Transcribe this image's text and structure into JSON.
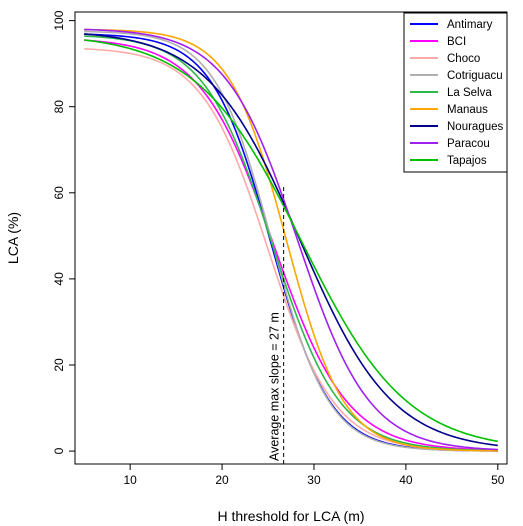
{
  "chart_data": {
    "type": "line",
    "title": "",
    "xlabel": "H threshold for LCA (m)",
    "ylabel": "LCA (%)",
    "xlim": [
      4,
      51
    ],
    "ylim": [
      -3,
      102
    ],
    "xticks": [
      10,
      20,
      30,
      40,
      50
    ],
    "yticks": [
      0,
      20,
      40,
      60,
      80,
      100
    ],
    "x_range": [
      5,
      50
    ],
    "grid": false,
    "legend_position": "top-right",
    "annotation": {
      "text": "Average max slope = 27 m",
      "x": 26.7,
      "style": "dashed vertical line"
    },
    "series": [
      {
        "name": "Antimary",
        "color": "#0000ff",
        "top": 97.0,
        "midpoint": 25.3,
        "scale": 3.2
      },
      {
        "name": "BCI",
        "color": "#ff00ff",
        "top": 96.0,
        "midpoint": 25.6,
        "scale": 4.0
      },
      {
        "name": "Choco",
        "color": "#ffaaaa",
        "top": 93.8,
        "midpoint": 25.0,
        "scale": 3.6
      },
      {
        "name": "Cotriguacu",
        "color": "#b0b0b0",
        "top": 97.6,
        "midpoint": 25.4,
        "scale": 3.1
      },
      {
        "name": "La Selva",
        "color": "#2db84a",
        "top": 96.8,
        "midpoint": 25.4,
        "scale": 3.7
      },
      {
        "name": "Manaus",
        "color": "#ffa500",
        "top": 98.0,
        "midpoint": 27.0,
        "scale": 3.1
      },
      {
        "name": "Nouragues",
        "color": "#00008b",
        "top": 97.8,
        "midpoint": 28.5,
        "scale": 5.0
      },
      {
        "name": "Paracou",
        "color": "#a020f0",
        "top": 98.2,
        "midpoint": 28.2,
        "scale": 3.9
      },
      {
        "name": "Tapajos",
        "color": "#00c000",
        "top": 97.0,
        "midpoint": 28.7,
        "scale": 5.7
      }
    ]
  }
}
